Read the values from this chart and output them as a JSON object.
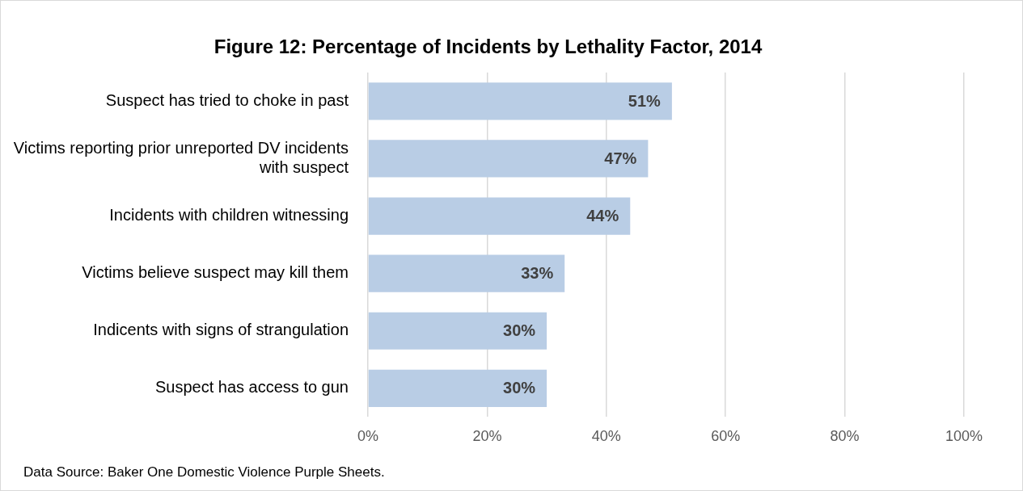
{
  "chart_data": {
    "type": "bar",
    "orientation": "horizontal",
    "title": "Figure 12: Percentage of Incidents by Lethality Factor, 2014",
    "categories": [
      "Suspect has tried to choke in past",
      "Victims reporting prior unreported DV incidents with suspect",
      "Incidents with children witnessing",
      "Victims believe suspect may kill them",
      "Indicents with signs of strangulation",
      "Suspect has access to gun"
    ],
    "values": [
      51,
      47,
      44,
      33,
      30,
      30
    ],
    "value_labels": [
      "51%",
      "47%",
      "44%",
      "33%",
      "30%",
      "30%"
    ],
    "color": "#b9cde5",
    "xlim": [
      0,
      100
    ],
    "xticks": [
      {
        "value": 0,
        "label": "0%"
      },
      {
        "value": 20,
        "label": "20%"
      },
      {
        "value": 40,
        "label": "40%"
      },
      {
        "value": 60,
        "label": "60%"
      },
      {
        "value": 80,
        "label": "80%"
      },
      {
        "value": 100,
        "label": "100%"
      }
    ],
    "grid": "x",
    "legend": false,
    "annotations": [
      "Data Source: Baker One Domestic Violence Purple Sheets."
    ]
  }
}
